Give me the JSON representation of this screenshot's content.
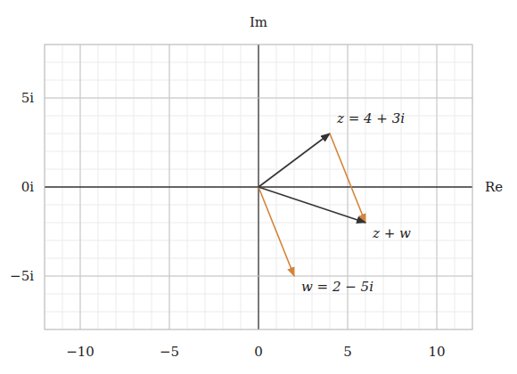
{
  "chart_data": {
    "type": "vector",
    "x_label": "Re",
    "y_label": "Im",
    "xlim": [
      -12,
      12
    ],
    "ylim": [
      -8,
      8
    ],
    "xticks": [
      {
        "value": -10,
        "label": "−10"
      },
      {
        "value": -5,
        "label": "−5"
      },
      0,
      5,
      10
    ],
    "yticks": [
      {
        "value": -5,
        "label": "−5i"
      },
      {
        "value": 0,
        "label": "0i"
      },
      {
        "value": 5,
        "label": "5i"
      }
    ],
    "grid": true,
    "series": [
      {
        "name": "z = 4 + 3i",
        "color": "#333333",
        "x": [
          0,
          4
        ],
        "values": [
          0,
          3
        ]
      },
      {
        "name": "w = 2 − 5i",
        "color": "#d4843a",
        "x": [
          0,
          2
        ],
        "values": [
          0,
          -5
        ]
      },
      {
        "color": "#d4843a",
        "x": [
          4,
          6
        ],
        "values": [
          3,
          -2
        ]
      },
      {
        "name": "z + w",
        "color": "#333333",
        "x": [
          0,
          6
        ],
        "values": [
          0,
          -2
        ]
      }
    ]
  }
}
